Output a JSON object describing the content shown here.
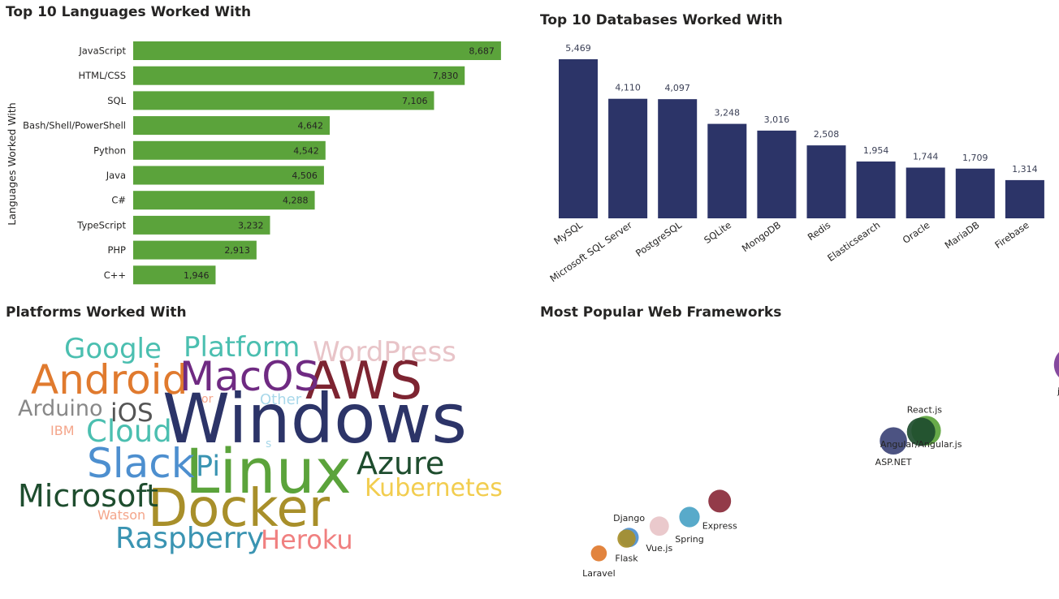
{
  "panels": {
    "languages_title": "Top 10 Languages Worked With",
    "databases_title": "Top 10 Databases Worked With",
    "platforms_title": "Platforms Worked With",
    "frameworks_title": "Most Popular Web Frameworks"
  },
  "chart_data": [
    {
      "type": "bar",
      "orientation": "horizontal",
      "title": "Top 10 Languages Worked With",
      "ylabel": "Languages Worked With",
      "xlabel": "",
      "color": "#5ba33b",
      "categories": [
        "JavaScript",
        "HTML/CSS",
        "SQL",
        "Bash/Shell/PowerShell",
        "Python",
        "Java",
        "C#",
        "TypeScript",
        "PHP",
        "C++"
      ],
      "values": [
        8687,
        7830,
        7106,
        4642,
        4542,
        4506,
        4288,
        3232,
        2913,
        1946
      ],
      "value_labels": [
        "8,687",
        "7,830",
        "7,106",
        "4,642",
        "4,542",
        "4,506",
        "4,288",
        "3,232",
        "2,913",
        "1,946"
      ],
      "xlim": [
        0,
        8900
      ]
    },
    {
      "type": "bar",
      "orientation": "vertical",
      "title": "Top 10 Databases Worked With",
      "color": "#2c3468",
      "categories": [
        "MySQL",
        "Microsoft SQL Server",
        "PostgreSQL",
        "SQLite",
        "MongoDB",
        "Redis",
        "Elasticsearch",
        "Oracle",
        "MariaDB",
        "Firebase"
      ],
      "values": [
        5469,
        4110,
        4097,
        3248,
        3016,
        2508,
        1954,
        1744,
        1709,
        1314
      ],
      "value_labels": [
        "5,469",
        "4,110",
        "4,097",
        "3,248",
        "3,016",
        "2,508",
        "1,954",
        "1,744",
        "1,709",
        "1,314"
      ],
      "ylim": [
        0,
        5469
      ]
    },
    {
      "type": "wordcloud",
      "title": "Platforms Worked With",
      "words": [
        {
          "text": "Windows",
          "color": "#2c3468",
          "weight": 10
        },
        {
          "text": "Linux",
          "color": "#5ba33b",
          "weight": 9
        },
        {
          "text": "Docker",
          "color": "#a88f2a",
          "weight": 8
        },
        {
          "text": "AWS",
          "color": "#7d2431",
          "weight": 7
        },
        {
          "text": "Android",
          "color": "#e07a2e",
          "weight": 6
        },
        {
          "text": "MacOS",
          "color": "#6f2a82",
          "weight": 6
        },
        {
          "text": "Slack",
          "color": "#4d8fcf",
          "weight": 6
        },
        {
          "text": "Microsoft",
          "color": "#1e4d2e",
          "weight": 5
        },
        {
          "text": "Azure",
          "color": "#1e4d2e",
          "weight": 5
        },
        {
          "text": "Raspberry",
          "color": "#3a94b2",
          "weight": 5
        },
        {
          "text": "Cloud",
          "color": "#4bbfb0",
          "weight": 5
        },
        {
          "text": "Google",
          "color": "#4bbfb0",
          "weight": 5
        },
        {
          "text": "Platform",
          "color": "#4bbfb0",
          "weight": 5
        },
        {
          "text": "WordPress",
          "color": "#e8c4c8",
          "weight": 5
        },
        {
          "text": "Kubernetes",
          "color": "#f2cd4f",
          "weight": 4
        },
        {
          "text": "Heroku",
          "color": "#f08080",
          "weight": 4
        },
        {
          "text": "iOS",
          "color": "#555555",
          "weight": 4
        },
        {
          "text": "Pi",
          "color": "#3a94b2",
          "weight": 4
        },
        {
          "text": "Arduino",
          "color": "#888888",
          "weight": 4
        },
        {
          "text": "Other",
          "color": "#a8d8ea",
          "weight": 2
        },
        {
          "text": "Watson",
          "color": "#f4a58a",
          "weight": 2
        },
        {
          "text": "IBM",
          "color": "#f4a58a",
          "weight": 2
        },
        {
          "text": "or",
          "color": "#f4a58a",
          "weight": 1
        },
        {
          "text": "s",
          "color": "#a8d8ea",
          "weight": 1
        }
      ]
    },
    {
      "type": "scatter",
      "title": "Most Popular Web Frameworks",
      "points": [
        {
          "name": "jQuery",
          "x": 9.6,
          "y": 9.2,
          "size": 3.2,
          "color": "#7b3a96"
        },
        {
          "name": "React.js",
          "x": 6.7,
          "y": 6.3,
          "size": 2.6,
          "color": "#5ba33b"
        },
        {
          "name": "Angular/Angular.js",
          "x": 6.6,
          "y": 6.25,
          "size": 2.5,
          "color": "#1e4d2e"
        },
        {
          "name": "ASP.NET",
          "x": 6.05,
          "y": 5.85,
          "size": 2.4,
          "color": "#3d4477"
        },
        {
          "name": "Express",
          "x": 2.6,
          "y": 3.2,
          "size": 2.0,
          "color": "#8a2a3a"
        },
        {
          "name": "Spring",
          "x": 2.0,
          "y": 2.5,
          "size": 1.8,
          "color": "#4aa3c5"
        },
        {
          "name": "Vue.js",
          "x": 1.4,
          "y": 2.1,
          "size": 1.7,
          "color": "#e8c4c8"
        },
        {
          "name": "Django",
          "x": 0.8,
          "y": 1.6,
          "size": 1.7,
          "color": "#4d8fcf"
        },
        {
          "name": "Flask",
          "x": 0.75,
          "y": 1.55,
          "size": 1.6,
          "color": "#a88f2a"
        },
        {
          "name": "Laravel",
          "x": 0.2,
          "y": 0.9,
          "size": 1.4,
          "color": "#e07a2e"
        }
      ]
    }
  ]
}
